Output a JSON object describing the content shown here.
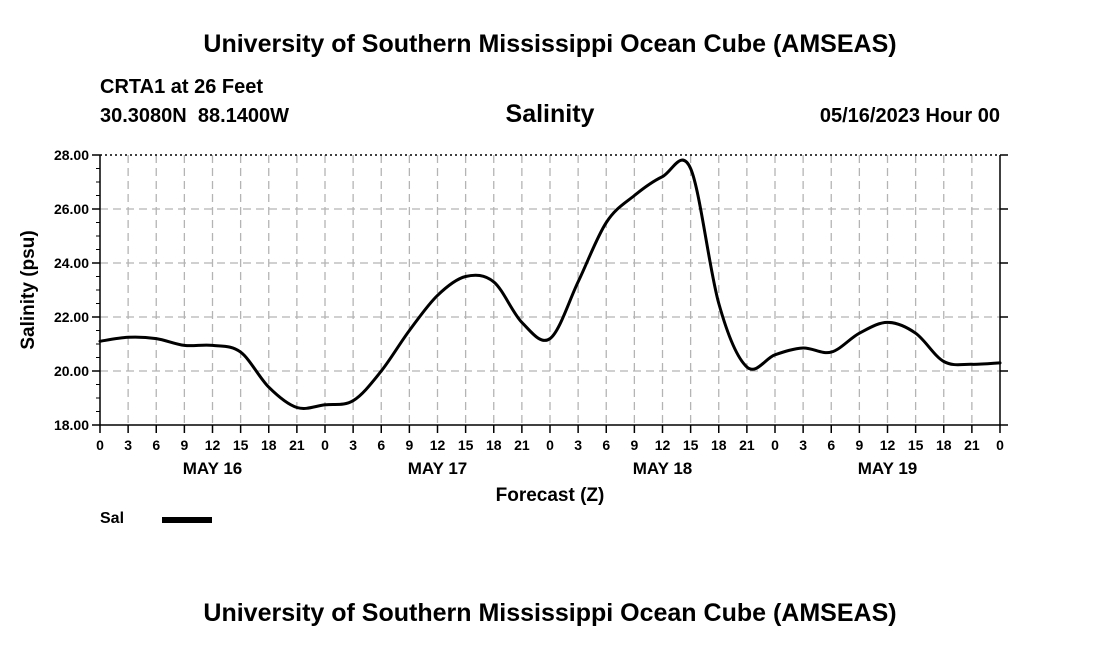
{
  "header": {
    "title": "University of Southern Mississippi Ocean Cube (AMSEAS)"
  },
  "station": {
    "name": "CRTA1 at 26 Feet",
    "coords": "30.3080N  88.1400W"
  },
  "date_label": "05/16/2023 Hour 00",
  "footer": {
    "title": "University of Southern Mississippi Ocean Cube (AMSEAS)"
  },
  "legend": {
    "label": "Sal",
    "color": "#000000"
  },
  "chart_data": {
    "type": "line",
    "title": "Salinity",
    "xlabel": "Forecast (Z)",
    "ylabel": "Salinity (psu)",
    "ylim": [
      18,
      28
    ],
    "xlim": [
      0,
      96
    ],
    "grid": true,
    "yticks": [
      "18.00",
      "20.00",
      "22.00",
      "24.00",
      "26.00",
      "28.00"
    ],
    "xtick_labels": [
      "0",
      "3",
      "6",
      "9",
      "12",
      "15",
      "18",
      "21",
      "0",
      "3",
      "6",
      "9",
      "12",
      "15",
      "18",
      "21",
      "0",
      "3",
      "6",
      "9",
      "12",
      "15",
      "18",
      "21",
      "0",
      "3",
      "6",
      "9",
      "12",
      "15",
      "18",
      "21",
      "0"
    ],
    "day_labels": [
      {
        "label": "MAY 16",
        "hour": 12
      },
      {
        "label": "MAY 17",
        "hour": 36
      },
      {
        "label": "MAY 18",
        "hour": 60
      },
      {
        "label": "MAY 19",
        "hour": 84
      }
    ],
    "series": [
      {
        "name": "Sal",
        "color": "#000000",
        "x": [
          0,
          3,
          6,
          9,
          12,
          15,
          18,
          21,
          24,
          27,
          30,
          33,
          36,
          39,
          42,
          45,
          48,
          51,
          54,
          57,
          60,
          63,
          66,
          69,
          72,
          75,
          78,
          81,
          84,
          87,
          90,
          93,
          96
        ],
        "values": [
          21.1,
          21.25,
          21.2,
          20.95,
          20.95,
          20.7,
          19.4,
          18.65,
          18.75,
          18.9,
          20.0,
          21.5,
          22.8,
          23.5,
          23.3,
          21.8,
          21.2,
          23.3,
          25.5,
          26.5,
          27.2,
          27.5,
          22.5,
          20.15,
          20.6,
          20.85,
          20.7,
          21.4,
          21.8,
          21.4,
          20.35,
          20.25,
          20.3
        ]
      }
    ]
  }
}
